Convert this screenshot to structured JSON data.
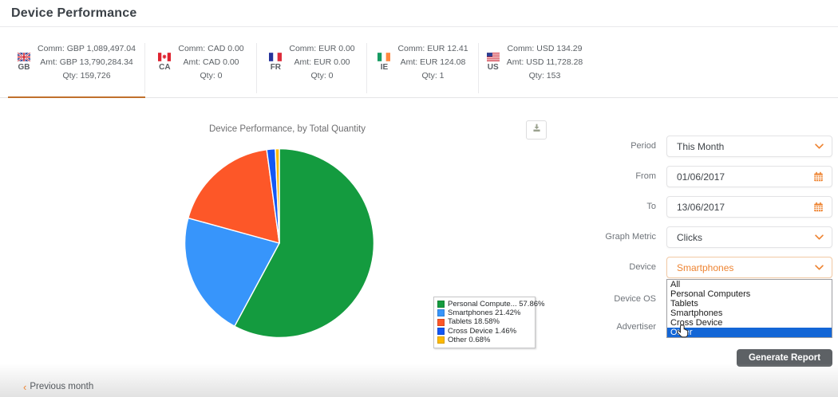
{
  "header": {
    "title": "Device Performance"
  },
  "country_tabs": [
    {
      "code": "GB",
      "comm": "Comm: GBP 1,089,497.04",
      "amt": "Amt: GBP 13,790,284.34",
      "qty": "Qty: 159,726",
      "selected": true
    },
    {
      "code": "CA",
      "comm": "Comm: CAD 0.00",
      "amt": "Amt: CAD 0.00",
      "qty": "Qty: 0",
      "selected": false
    },
    {
      "code": "FR",
      "comm": "Comm: EUR 0.00",
      "amt": "Amt: EUR 0.00",
      "qty": "Qty: 0",
      "selected": false
    },
    {
      "code": "IE",
      "comm": "Comm: EUR 12.41",
      "amt": "Amt: EUR 124.08",
      "qty": "Qty: 1",
      "selected": false
    },
    {
      "code": "US",
      "comm": "Comm: USD 134.29",
      "amt": "Amt: USD 11,728.28",
      "qty": "Qty: 153",
      "selected": false
    }
  ],
  "chart_data": {
    "type": "pie",
    "title": "Device Performance, by Total Quantity",
    "start_angle_deg": 0,
    "direction": "clockwise",
    "legend_position": "bottom-right",
    "slices": [
      {
        "label": "Personal Computers",
        "legend_text": "Personal Compute... 57.86%",
        "value_pct": 57.86,
        "color": "#149b3f"
      },
      {
        "label": "Smartphones",
        "legend_text": "Smartphones 21.42%",
        "value_pct": 21.42,
        "color": "#3795fb"
      },
      {
        "label": "Tablets",
        "legend_text": "Tablets 18.58%",
        "value_pct": 18.58,
        "color": "#fd5728"
      },
      {
        "label": "Cross Device",
        "legend_text": "Cross Device 1.46%",
        "value_pct": 1.46,
        "color": "#1257f5"
      },
      {
        "label": "Other",
        "legend_text": "Other 0.68%",
        "value_pct": 0.68,
        "color": "#fdb900"
      }
    ]
  },
  "form": {
    "period": {
      "label": "Period",
      "value": "This Month"
    },
    "from": {
      "label": "From",
      "value": "01/06/2017"
    },
    "to": {
      "label": "To",
      "value": "13/06/2017"
    },
    "graph_metric": {
      "label": "Graph Metric",
      "value": "Clicks"
    },
    "device": {
      "label": "Device",
      "value": "Smartphones",
      "options": [
        "All",
        "Personal Computers",
        "Tablets",
        "Smartphones",
        "Cross Device",
        "Other"
      ],
      "highlighted_option": "Other"
    },
    "device_os": {
      "label": "Device OS"
    },
    "advertiser": {
      "label": "Advertiser"
    },
    "generate_button": "Generate Report"
  },
  "footer": {
    "chevron": "‹",
    "previous_link": "Previous month"
  },
  "colors": {
    "accent_orange": "#ee8432",
    "tab_underline": "#c0702c",
    "dropdown_highlight": "#1366d6",
    "button_bg": "#5d6165"
  }
}
